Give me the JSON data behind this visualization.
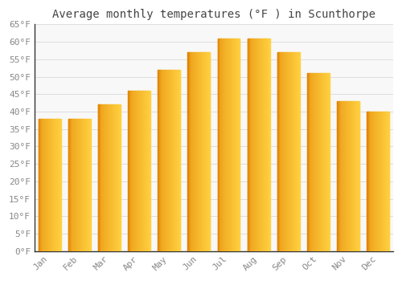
{
  "months": [
    "Jan",
    "Feb",
    "Mar",
    "Apr",
    "May",
    "Jun",
    "Jul",
    "Aug",
    "Sep",
    "Oct",
    "Nov",
    "Dec"
  ],
  "values": [
    38,
    38,
    42,
    46,
    52,
    57,
    61,
    61,
    57,
    51,
    43,
    40
  ],
  "title": "Average monthly temperatures (°F ) in Scunthorpe",
  "ylim": [
    0,
    65
  ],
  "yticks": [
    0,
    5,
    10,
    15,
    20,
    25,
    30,
    35,
    40,
    45,
    50,
    55,
    60,
    65
  ],
  "ytick_labels": [
    "0°F",
    "5°F",
    "10°F",
    "15°F",
    "20°F",
    "25°F",
    "30°F",
    "35°F",
    "40°F",
    "45°F",
    "50°F",
    "55°F",
    "60°F",
    "65°F"
  ],
  "bar_color_center": "#FFD040",
  "bar_color_edge": "#F5A800",
  "bar_color_shadow": "#E08000",
  "background_color": "#FFFFFF",
  "plot_bg_color": "#F8F8F8",
  "grid_color": "#DDDDDD",
  "spine_color": "#333333",
  "title_color": "#444444",
  "tick_color": "#888888",
  "title_fontsize": 10,
  "tick_fontsize": 8,
  "bar_width": 0.75
}
